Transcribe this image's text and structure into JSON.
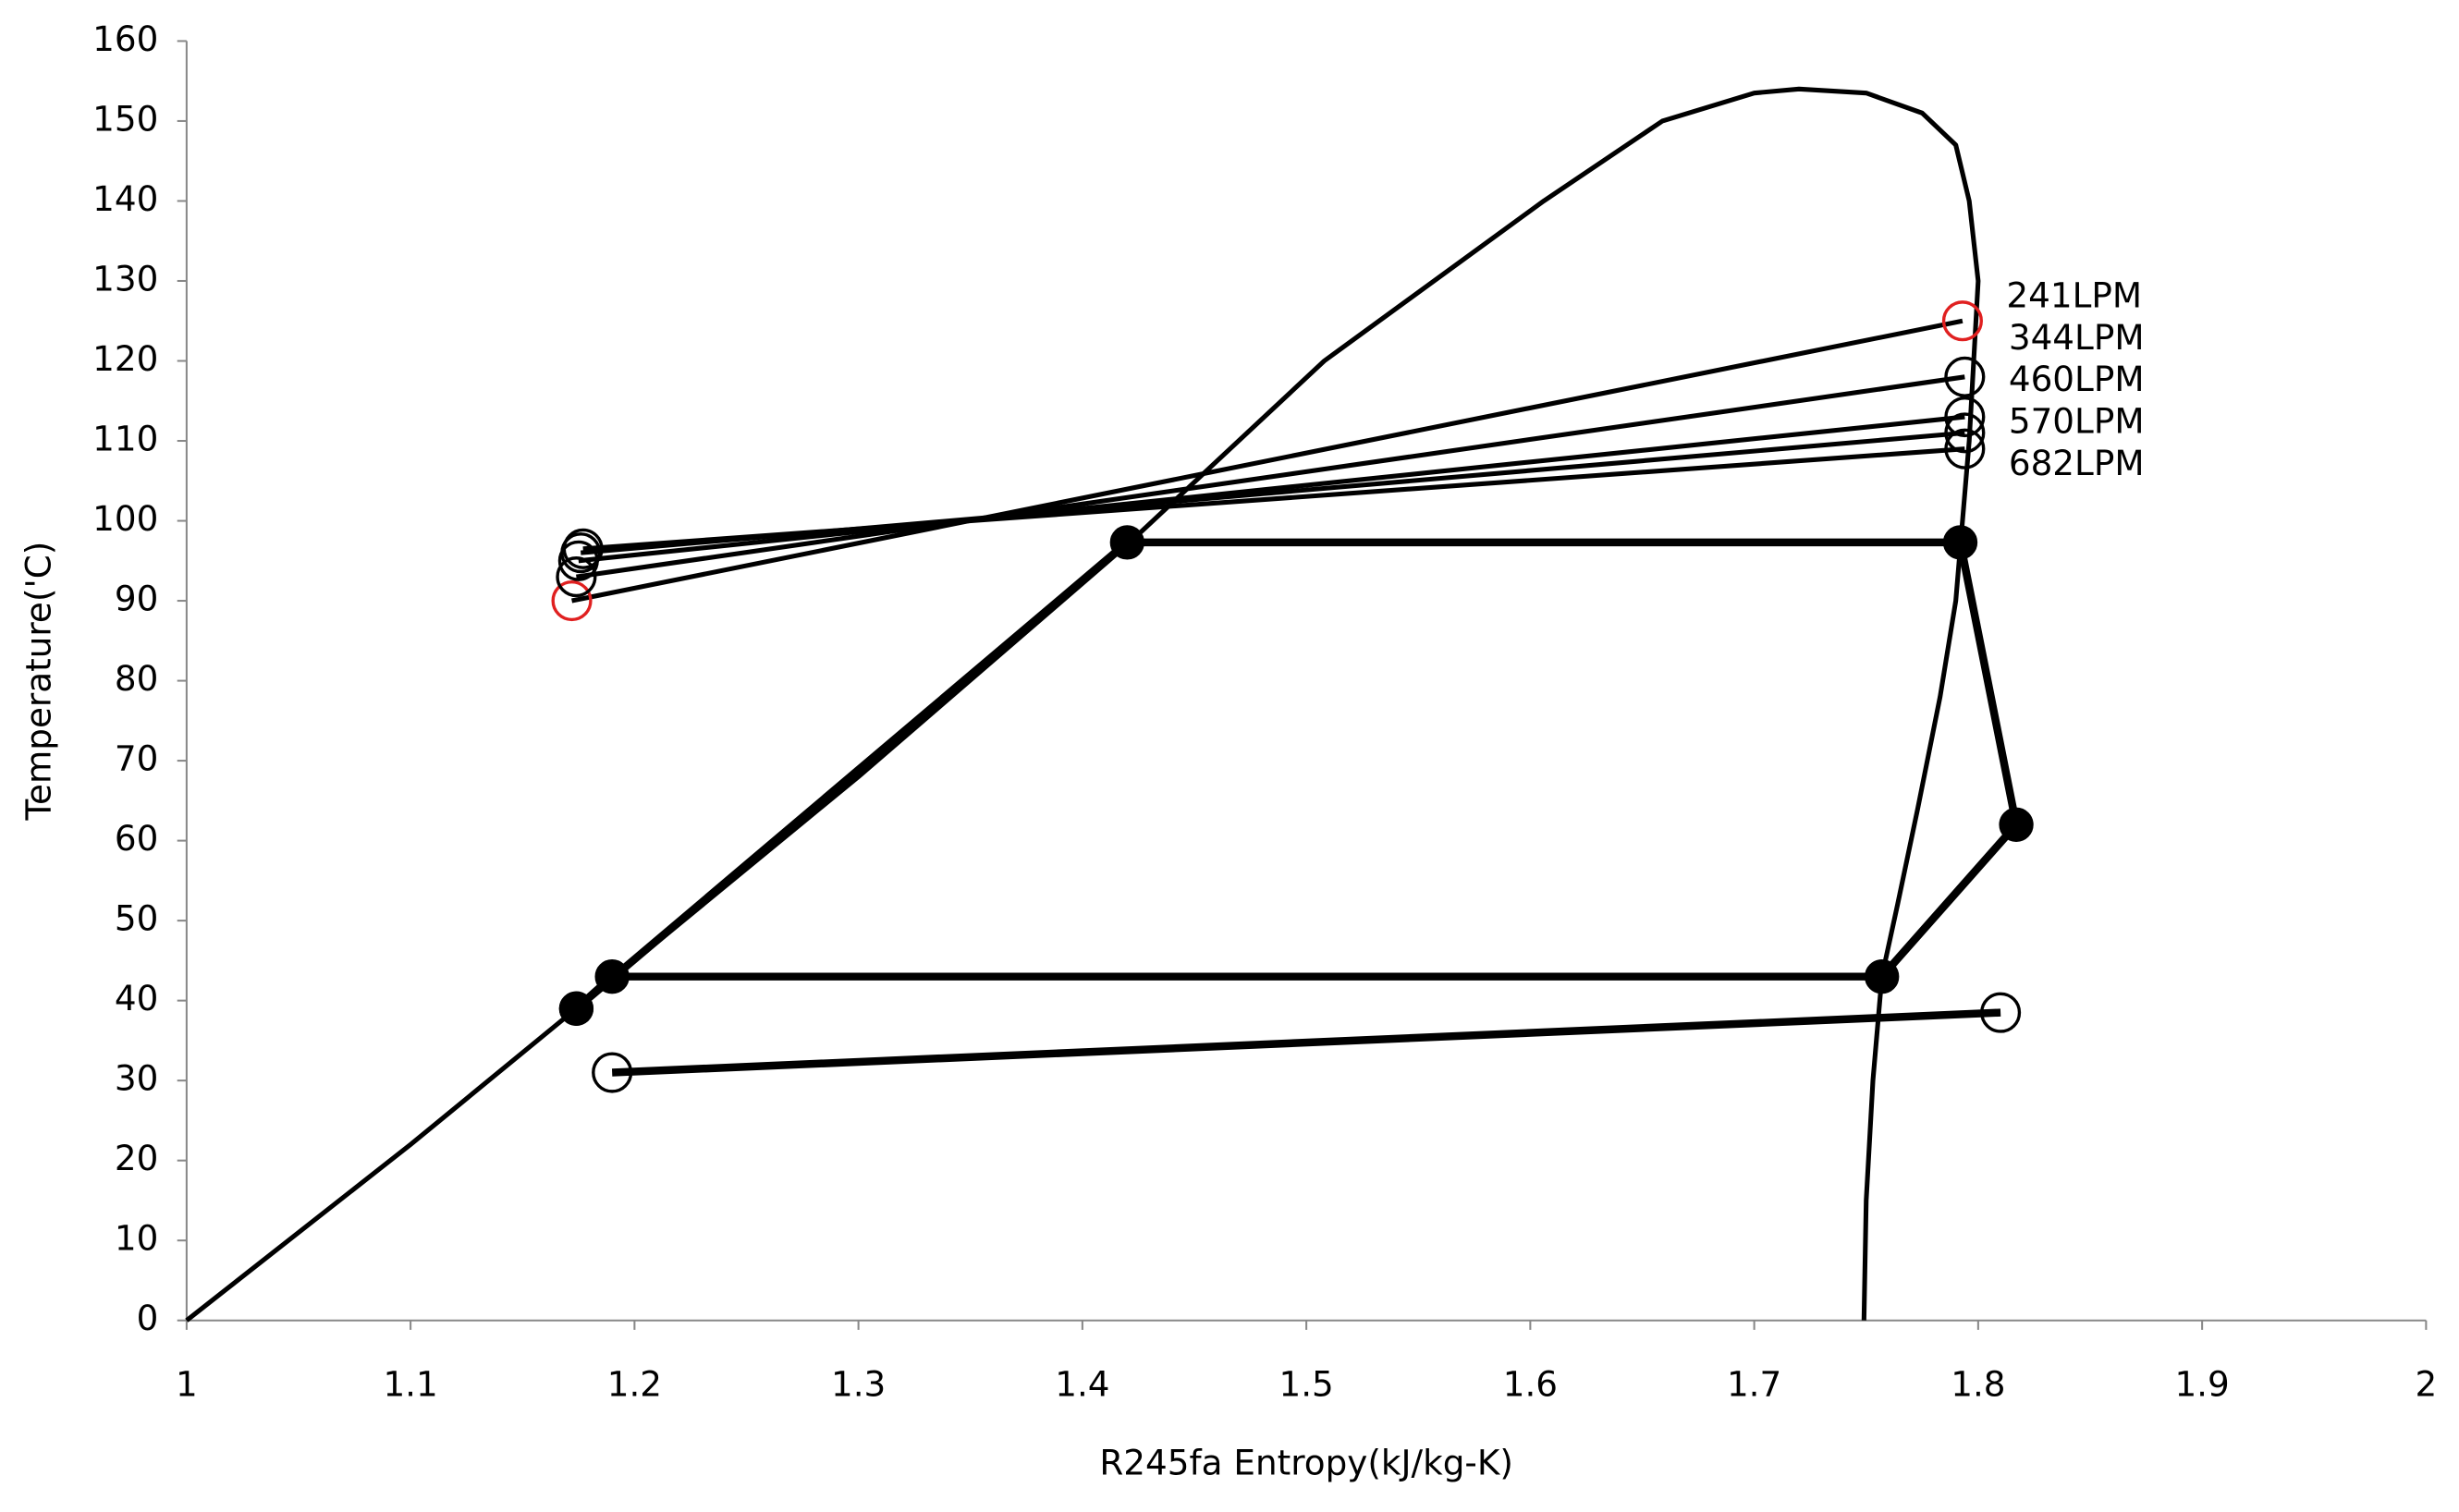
{
  "chart_data": {
    "type": "line",
    "x_label": "R245fa Entropy(kJ/kg-K)",
    "y_label": "Temperature('C)",
    "xlim": [
      1,
      2
    ],
    "xticks": [
      1,
      1.1,
      1.2,
      1.3,
      1.4,
      1.5,
      1.6,
      1.7,
      1.8,
      1.9,
      2
    ],
    "ylim": [
      0,
      160
    ],
    "yticks": [
      0,
      10,
      20,
      30,
      40,
      50,
      60,
      70,
      80,
      90,
      100,
      110,
      120,
      130,
      140,
      150,
      160
    ],
    "grid": false,
    "series": [
      {
        "color": "#000000",
        "line_width": 3,
        "marker": "none",
        "x": [
          1.0,
          1.1,
          1.174,
          1.3,
          1.42,
          1.508,
          1.606,
          1.659,
          1.7,
          1.72,
          1.75,
          1.775,
          1.79,
          1.796,
          1.8,
          1.798,
          1.796,
          1.793,
          1.79,
          1.783,
          1.773,
          1.764,
          1.757,
          1.753,
          1.75,
          1.749
        ],
        "y": [
          0,
          22,
          39,
          68,
          97,
          120,
          140,
          150,
          153.5,
          154,
          153.5,
          151,
          147,
          140,
          130,
          120,
          110,
          100,
          90,
          78,
          64,
          52,
          43,
          30,
          15,
          0
        ]
      },
      {
        "name": "241LPM",
        "color": "#000000",
        "marker_color": "#e02020",
        "line_width": 3,
        "marker": "circle-open",
        "x": [
          1.172,
          1.793
        ],
        "y": [
          90,
          125
        ]
      },
      {
        "name": "344LPM",
        "color": "#000000",
        "marker_color": "#000000",
        "line_width": 3,
        "marker": "circle-open",
        "x": [
          1.174,
          1.794
        ],
        "y": [
          93,
          118
        ]
      },
      {
        "name": "460LPM",
        "color": "#000000",
        "marker_color": "#000000",
        "line_width": 3,
        "marker": "circle-open",
        "x": [
          1.175,
          1.794
        ],
        "y": [
          95,
          113
        ]
      },
      {
        "name": "570LPM",
        "color": "#000000",
        "marker_color": "#000000",
        "line_width": 3,
        "marker": "circle-open",
        "x": [
          1.176,
          1.794
        ],
        "y": [
          96,
          111
        ]
      },
      {
        "name": "682LPM",
        "color": "#000000",
        "marker_color": "#000000",
        "line_width": 3,
        "marker": "circle-open",
        "x": [
          1.177,
          1.794
        ],
        "y": [
          96.5,
          109
        ]
      },
      {
        "color": "#000000",
        "marker_color": "#000000",
        "line_width": 5,
        "marker": "circle-filled",
        "x": [
          1.174,
          1.42,
          1.792,
          1.817,
          1.757,
          1.19,
          1.174
        ],
        "y": [
          39,
          97.3,
          97.3,
          62,
          43,
          43,
          39
        ]
      },
      {
        "color": "#000000",
        "marker_color": "#000000",
        "line_width": 5,
        "marker": "circle-open",
        "x": [
          1.19,
          1.81
        ],
        "y": [
          31,
          38.5
        ]
      }
    ]
  }
}
